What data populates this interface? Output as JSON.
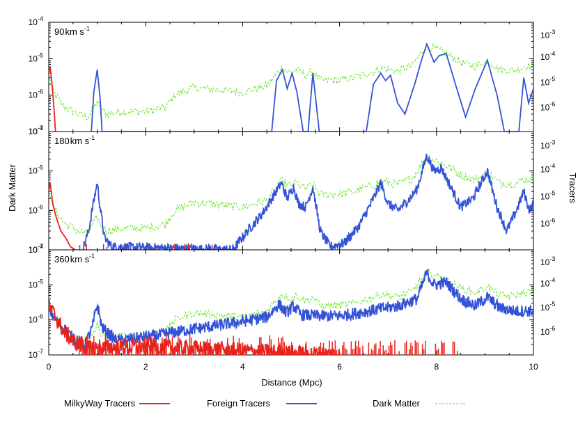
{
  "chart_data": {
    "type": "line",
    "xlabel": "Distance (Mpc)",
    "ylabel_left": "Dark Matter",
    "ylabel_right": "Tracers",
    "xlim": [
      0,
      10
    ],
    "x_ticks": [
      "0",
      "2",
      "4",
      "6",
      "8",
      "10"
    ],
    "left_scale": "log",
    "left_ylim": [
      1e-07,
      0.0001
    ],
    "right_scale": "log",
    "left_ticks": [
      {
        "base": "10",
        "exp": "-7",
        "value": 1e-07
      },
      {
        "base": "10",
        "exp": "-6",
        "value": 1e-06
      },
      {
        "base": "10",
        "exp": "-5",
        "value": 1e-05
      },
      {
        "base": "10",
        "exp": "-4",
        "value": 0.0001
      }
    ],
    "right_ticks": [
      {
        "base": "10",
        "exp": "-6"
      },
      {
        "base": "10",
        "exp": "-5"
      },
      {
        "base": "10",
        "exp": "-4"
      },
      {
        "base": "10",
        "exp": "-3"
      }
    ],
    "legend": {
      "placement": "bottom",
      "entries": [
        {
          "name": "MilkyWay Tracers",
          "color": "#e8231c",
          "style": "solid"
        },
        {
          "name": "Foreign Tracers",
          "color": "#3353d6",
          "style": "solid"
        },
        {
          "name": "Dark Matter",
          "color": "#6ee62e",
          "style": "dashed"
        }
      ]
    },
    "colors": {
      "milkyway": "#e8231c",
      "foreign": "#3353d6",
      "darkmatter": "#6ee62e"
    },
    "dark_matter_profile": [
      [
        0.0,
        4e-06
      ],
      [
        0.1,
        1.2e-06
      ],
      [
        0.3,
        5e-07
      ],
      [
        0.6,
        3e-07
      ],
      [
        0.8,
        2.5e-07
      ],
      [
        0.95,
        5e-07
      ],
      [
        1.0,
        7e-07
      ],
      [
        1.05,
        4.5e-07
      ],
      [
        1.2,
        3e-07
      ],
      [
        1.5,
        3.5e-07
      ],
      [
        2.0,
        3.5e-07
      ],
      [
        2.4,
        4.5e-07
      ],
      [
        2.6,
        1e-06
      ],
      [
        3.0,
        1.6e-06
      ],
      [
        3.5,
        1.4e-06
      ],
      [
        4.0,
        1.2e-06
      ],
      [
        4.5,
        1.8e-06
      ],
      [
        4.8,
        5.5e-06
      ],
      [
        5.0,
        4e-06
      ],
      [
        5.1,
        5e-06
      ],
      [
        5.3,
        3.5e-06
      ],
      [
        5.45,
        4.5e-06
      ],
      [
        5.6,
        2.5e-06
      ],
      [
        6.0,
        2.6e-06
      ],
      [
        6.3,
        3e-06
      ],
      [
        6.6,
        4e-06
      ],
      [
        6.9,
        5.5e-06
      ],
      [
        7.2,
        4.5e-06
      ],
      [
        7.5,
        6.5e-06
      ],
      [
        7.8,
        2.3e-05
      ],
      [
        8.0,
        1.8e-05
      ],
      [
        8.2,
        1.4e-05
      ],
      [
        8.5,
        8e-06
      ],
      [
        8.8,
        6e-06
      ],
      [
        9.05,
        9e-06
      ],
      [
        9.3,
        5e-06
      ],
      [
        9.6,
        4.8e-06
      ],
      [
        9.8,
        6e-06
      ],
      [
        10.0,
        6.5e-06
      ]
    ],
    "panels": [
      {
        "label_value": "90",
        "label_unit_main": "km s",
        "label_unit_exp": "-1",
        "foreign_tracers": [
          [
            0.88,
            1e-07
          ],
          [
            0.93,
            1.2e-06
          ],
          [
            1.0,
            5e-06
          ],
          [
            1.06,
            8e-07
          ],
          [
            1.1,
            1e-07
          ],
          [
            4.6,
            1e-07
          ],
          [
            4.7,
            2.5e-06
          ],
          [
            4.82,
            5e-06
          ],
          [
            4.92,
            1.5e-06
          ],
          [
            5.02,
            4e-06
          ],
          [
            5.12,
            1.2e-06
          ],
          [
            5.25,
            1e-07
          ],
          [
            5.35,
            1e-07
          ],
          [
            5.45,
            4e-06
          ],
          [
            5.58,
            1e-07
          ],
          [
            6.55,
            1e-07
          ],
          [
            6.7,
            2e-06
          ],
          [
            6.85,
            4e-06
          ],
          [
            6.95,
            2.5e-06
          ],
          [
            7.05,
            3.5e-06
          ],
          [
            7.2,
            6e-07
          ],
          [
            7.35,
            3e-07
          ],
          [
            7.55,
            2e-06
          ],
          [
            7.7,
            1e-05
          ],
          [
            7.8,
            2.5e-05
          ],
          [
            7.95,
            8e-06
          ],
          [
            8.05,
            1.2e-05
          ],
          [
            8.2,
            1.4e-05
          ],
          [
            8.35,
            3e-06
          ],
          [
            8.6,
            2.5e-07
          ],
          [
            8.8,
            1.5e-06
          ],
          [
            9.05,
            9e-06
          ],
          [
            9.25,
            1e-06
          ],
          [
            9.4,
            1e-07
          ],
          [
            9.7,
            1e-07
          ],
          [
            9.8,
            3e-06
          ],
          [
            9.9,
            6e-07
          ],
          [
            10.0,
            1.5e-06
          ]
        ],
        "milkyway_tracers": [
          [
            0.0,
            4e-06
          ],
          [
            0.03,
            6e-06
          ],
          [
            0.06,
            2.5e-06
          ],
          [
            0.1,
            6e-07
          ],
          [
            0.14,
            1e-07
          ]
        ]
      },
      {
        "label_value": "180",
        "label_unit_main": "km s",
        "label_unit_exp": "-1",
        "foreign_tracers": [
          [
            0.7,
            1e-07
          ],
          [
            0.82,
            3e-07
          ],
          [
            0.92,
            1.5e-06
          ],
          [
            1.0,
            5e-06
          ],
          [
            1.06,
            1.2e-06
          ],
          [
            1.15,
            2e-07
          ],
          [
            1.3,
            1.2e-07
          ],
          [
            3.8,
            1e-07
          ],
          [
            4.1,
            3e-07
          ],
          [
            4.4,
            8e-07
          ],
          [
            4.6,
            2e-06
          ],
          [
            4.8,
            5e-06
          ],
          [
            4.92,
            2e-06
          ],
          [
            5.05,
            4e-06
          ],
          [
            5.15,
            1.5e-06
          ],
          [
            5.3,
            1.2e-06
          ],
          [
            5.45,
            4e-06
          ],
          [
            5.6,
            3e-07
          ],
          [
            5.8,
            1.2e-07
          ],
          [
            6.1,
            1.5e-07
          ],
          [
            6.4,
            4e-07
          ],
          [
            6.65,
            1.5e-06
          ],
          [
            6.85,
            5e-06
          ],
          [
            7.0,
            1.5e-06
          ],
          [
            7.2,
            1e-06
          ],
          [
            7.45,
            2e-06
          ],
          [
            7.6,
            3.5e-06
          ],
          [
            7.8,
            2.5e-05
          ],
          [
            7.95,
            1e-05
          ],
          [
            8.1,
            1.2e-05
          ],
          [
            8.25,
            5e-06
          ],
          [
            8.5,
            1.2e-06
          ],
          [
            8.75,
            2e-06
          ],
          [
            9.05,
            1e-05
          ],
          [
            9.25,
            1.2e-06
          ],
          [
            9.45,
            3e-07
          ],
          [
            9.65,
            1e-06
          ],
          [
            9.8,
            3e-06
          ],
          [
            9.92,
            1e-06
          ],
          [
            10.0,
            1.5e-06
          ]
        ],
        "milkyway_tracers": [
          [
            0.0,
            3e-06
          ],
          [
            0.03,
            5e-06
          ],
          [
            0.08,
            1.5e-06
          ],
          [
            0.15,
            7e-07
          ],
          [
            0.25,
            3e-07
          ],
          [
            0.35,
            2e-07
          ],
          [
            0.45,
            1.2e-07
          ],
          [
            0.55,
            1e-07
          ]
        ]
      },
      {
        "label_value": "360",
        "label_unit_main": "km s",
        "label_unit_exp": "-1",
        "foreign_tracers": [
          [
            0.0,
            2e-06
          ],
          [
            0.2,
            8e-07
          ],
          [
            0.5,
            3e-07
          ],
          [
            0.75,
            2e-07
          ],
          [
            0.9,
            6e-07
          ],
          [
            1.0,
            2.8e-06
          ],
          [
            1.1,
            6e-07
          ],
          [
            1.4,
            2.5e-07
          ],
          [
            1.8,
            3e-07
          ],
          [
            2.2,
            3.5e-07
          ],
          [
            2.6,
            4.5e-07
          ],
          [
            3.0,
            5.5e-07
          ],
          [
            3.5,
            7e-07
          ],
          [
            4.0,
            9e-07
          ],
          [
            4.5,
            1.2e-06
          ],
          [
            4.75,
            2.8e-06
          ],
          [
            4.9,
            1.6e-06
          ],
          [
            5.05,
            2.5e-06
          ],
          [
            5.2,
            1.4e-06
          ],
          [
            5.6,
            1.3e-06
          ],
          [
            6.0,
            1.3e-06
          ],
          [
            6.4,
            1.6e-06
          ],
          [
            6.8,
            2e-06
          ],
          [
            7.2,
            2.5e-06
          ],
          [
            7.6,
            4e-06
          ],
          [
            7.8,
            2.2e-05
          ],
          [
            7.95,
            1e-05
          ],
          [
            8.2,
            1.2e-05
          ],
          [
            8.5,
            4e-06
          ],
          [
            8.8,
            2.5e-06
          ],
          [
            9.05,
            4.5e-06
          ],
          [
            9.3,
            2.2e-06
          ],
          [
            9.6,
            1.8e-06
          ],
          [
            10.0,
            1.8e-06
          ]
        ],
        "milkyway_tracers": [
          [
            0.0,
            2.5e-06
          ],
          [
            0.1,
            1.5e-06
          ],
          [
            0.3,
            5e-07
          ],
          [
            0.5,
            2.5e-07
          ],
          [
            0.8,
            1.5e-07
          ],
          [
            1.2,
            1.6e-07
          ],
          [
            1.6,
            1.7e-07
          ],
          [
            2.0,
            1.7e-07
          ],
          [
            2.5,
            1.6e-07
          ],
          [
            3.0,
            1.5e-07
          ],
          [
            3.5,
            1.4e-07
          ],
          [
            4.0,
            1.3e-07
          ],
          [
            4.5,
            1.2e-07
          ],
          [
            5.0,
            1.1e-07
          ],
          [
            5.5,
            1.05e-07
          ],
          [
            6.0,
            1e-07
          ]
        ],
        "milkyway_spikes_to": 8.5
      }
    ]
  }
}
